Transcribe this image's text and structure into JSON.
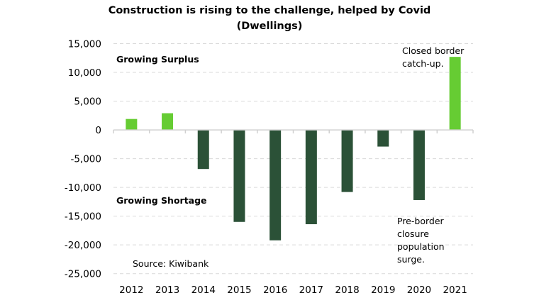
{
  "chart_data": {
    "type": "bar",
    "title": "Construction is rising to the challenge, helped by Covid",
    "subtitle": "(Dwellings)",
    "xlabel": "",
    "ylabel": "",
    "categories": [
      "2012",
      "2013",
      "2014",
      "2015",
      "2016",
      "2017",
      "2018",
      "2019",
      "2020",
      "2021"
    ],
    "values": [
      1900,
      2900,
      -6800,
      -16000,
      -19200,
      -16400,
      -10800,
      -2900,
      -12200,
      12700
    ],
    "ylim": [
      -25000,
      15000
    ],
    "yticks": [
      15000,
      10000,
      5000,
      0,
      -5000,
      -10000,
      -15000,
      -20000,
      -25000
    ],
    "ytick_labels": [
      "15,000",
      "10,000",
      "5,000",
      "0",
      "-5,000",
      "-10,000",
      "-15,000",
      "-20,000",
      "-25,000"
    ],
    "grid": true,
    "legend": "none",
    "colors": {
      "positive": "#66cc33",
      "negative": "#2b5137"
    },
    "annotations": {
      "surplus": "Growing Surplus",
      "shortage": "Growing Shortage",
      "source": "Source: Kiwibank",
      "closed_border": [
        "Closed border",
        "catch-up."
      ],
      "pre_border": [
        "Pre-border",
        "closure",
        "population",
        "surge."
      ]
    }
  }
}
